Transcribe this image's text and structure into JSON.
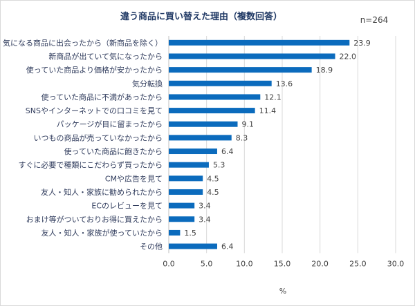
{
  "chart_data": {
    "type": "bar",
    "orientation": "horizontal",
    "title": "違う商品に買い替えた理由（複数回答）",
    "annotation": "n=264",
    "xlabel": "%",
    "ylabel": "",
    "xlim": [
      0,
      30
    ],
    "xticks": [
      "0.0",
      "5.0",
      "10.0",
      "15.0",
      "20.0",
      "25.0",
      "30.0"
    ],
    "grid": true,
    "bar_color": "#0b6bbd",
    "categories": [
      "気になる商品に出会ったから（新商品を除く）",
      "新商品が出ていて気になったから",
      "使っていた商品より価格が安かったから",
      "気分転換",
      "使っていた商品に不満があったから",
      "SNSやインターネットでの口コミを見て",
      "パッケージが目に留まったから",
      "いつもの商品が売っていなかったから",
      "使っていた商品に飽きたから",
      "すぐに必要で種類にこだわらず買ったから",
      "CMや広告を見て",
      "友人・知人・家族に勧められたから",
      "ECのレビューを見て",
      "おまけ等がついておりお得に買えたから",
      "友人・知人・家族が使っていたから",
      "その他"
    ],
    "values": [
      23.9,
      22.0,
      18.9,
      13.6,
      12.1,
      11.4,
      9.1,
      8.3,
      6.4,
      5.3,
      4.5,
      4.5,
      3.4,
      3.4,
      1.5,
      6.4
    ],
    "value_labels": [
      "23.9",
      "22.0",
      "18.9",
      "13.6",
      "12.1",
      "11.4",
      "9.1",
      "8.3",
      "6.4",
      "5.3",
      "4.5",
      "4.5",
      "3.4",
      "3.4",
      "1.5",
      "6.4"
    ]
  }
}
